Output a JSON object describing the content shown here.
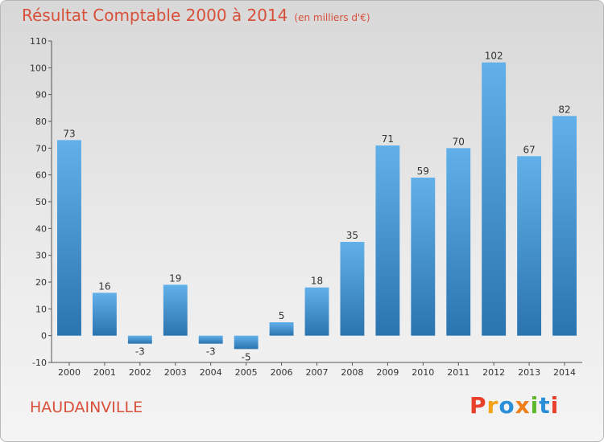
{
  "chart_data": {
    "type": "bar",
    "title": "Résultat Comptable 2000 à 2014",
    "subtitle": "(en milliers d'€)",
    "categories": [
      "2000",
      "2001",
      "2002",
      "2003",
      "2004",
      "2005",
      "2006",
      "2007",
      "2008",
      "2009",
      "2010",
      "2011",
      "2012",
      "2013",
      "2014"
    ],
    "values": [
      73,
      16,
      -3,
      19,
      -3,
      -5,
      5,
      18,
      35,
      71,
      59,
      70,
      102,
      67,
      82
    ],
    "ylim": [
      -10,
      110
    ],
    "yticks": [
      -10,
      0,
      10,
      20,
      30,
      40,
      50,
      60,
      70,
      80,
      90,
      100,
      110
    ],
    "grid": false,
    "colors": {
      "bar_top": "#62b0ea",
      "bar_bottom": "#2a74b0",
      "title": "#d8503a"
    }
  },
  "place_name": "HAUDAINVILLE",
  "logo": {
    "text": "Proxiti",
    "colors": [
      "#e8402a",
      "#f3a21a",
      "#2a8fd8",
      "#ef7f1a",
      "#5cb82a",
      "#2a8fd8",
      "#e8402a"
    ]
  }
}
